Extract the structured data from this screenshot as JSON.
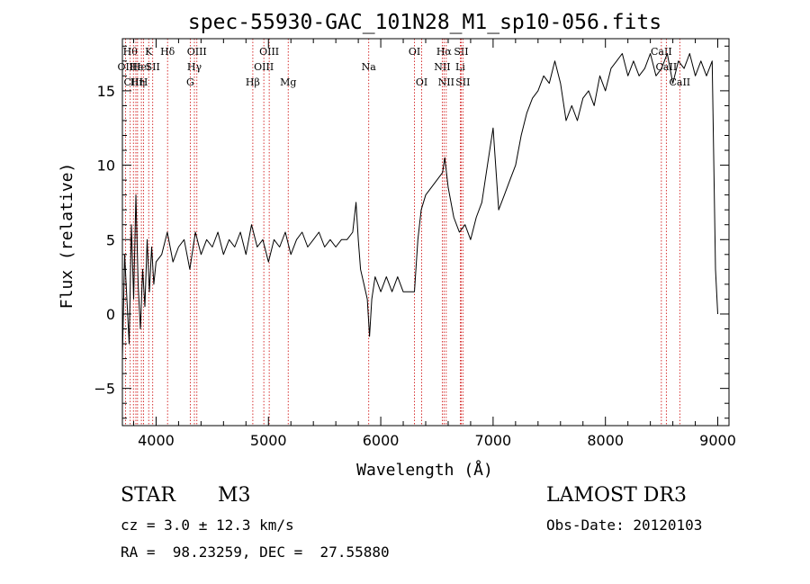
{
  "chart_data": {
    "type": "line",
    "title": "spec-55930-GAC_101N28_M1_sp10-056.fits",
    "xlabel": "Wavelength (Å)",
    "ylabel": "Flux (relative)",
    "xlim": [
      3700,
      9100
    ],
    "ylim": [
      -7.5,
      18.5
    ],
    "x_ticks": [
      4000,
      5000,
      6000,
      7000,
      8000,
      9000
    ],
    "y_ticks": [
      -5,
      0,
      5,
      10,
      15
    ],
    "line_color": "#000000",
    "marker_color": "#cc0000",
    "series": [
      {
        "x": [
          3700,
          3720,
          3740,
          3760,
          3780,
          3800,
          3820,
          3840,
          3860,
          3880,
          3900,
          3920,
          3940,
          3960,
          3980,
          4000,
          4050,
          4100,
          4150,
          4200,
          4250,
          4300,
          4350,
          4400,
          4450,
          4500,
          4550,
          4600,
          4650,
          4700,
          4750,
          4800,
          4850,
          4900,
          4950,
          5000,
          5050,
          5100,
          5150,
          5200,
          5250,
          5300,
          5350,
          5400,
          5450,
          5500,
          5550,
          5600,
          5650,
          5700,
          5750,
          5780,
          5800,
          5820,
          5850,
          5880,
          5900,
          5920,
          5950,
          6000,
          6050,
          6100,
          6150,
          6200,
          6250,
          6300,
          6330,
          6360,
          6400,
          6450,
          6500,
          6550,
          6570,
          6600,
          6650,
          6700,
          6750,
          6800,
          6850,
          6900,
          6950,
          7000,
          7050,
          7100,
          7150,
          7200,
          7250,
          7300,
          7350,
          7400,
          7450,
          7500,
          7550,
          7600,
          7650,
          7700,
          7750,
          7800,
          7850,
          7900,
          7950,
          8000,
          8050,
          8100,
          8150,
          8200,
          8250,
          8300,
          8350,
          8400,
          8450,
          8500,
          8550,
          8600,
          8650,
          8700,
          8750,
          8800,
          8850,
          8900,
          8950,
          8980,
          9000
        ],
        "y": [
          -3.0,
          4.0,
          1.0,
          -2.0,
          6.0,
          1.0,
          8.0,
          2.0,
          -1.0,
          3.0,
          0.5,
          5.0,
          1.5,
          4.5,
          2.0,
          3.5,
          4.0,
          5.5,
          3.5,
          4.5,
          5.0,
          3.0,
          5.5,
          4.0,
          5.0,
          4.5,
          5.5,
          4.0,
          5.0,
          4.5,
          5.5,
          4.0,
          6.0,
          4.5,
          5.0,
          3.5,
          5.0,
          4.5,
          5.5,
          4.0,
          5.0,
          5.5,
          4.5,
          5.0,
          5.5,
          4.5,
          5.0,
          4.5,
          5.0,
          5.0,
          5.5,
          7.5,
          5.0,
          3.0,
          2.0,
          1.0,
          -1.5,
          1.0,
          2.5,
          1.5,
          2.5,
          1.5,
          2.5,
          1.5,
          1.5,
          1.5,
          5.0,
          7.0,
          8.0,
          8.5,
          9.0,
          9.5,
          10.5,
          8.5,
          6.5,
          5.5,
          6.0,
          5.0,
          6.5,
          7.5,
          10.0,
          12.5,
          7.0,
          8.0,
          9.0,
          10.0,
          12.0,
          13.5,
          14.5,
          15.0,
          16.0,
          15.5,
          17.0,
          15.5,
          13.0,
          14.0,
          13.0,
          14.5,
          15.0,
          14.0,
          16.0,
          15.0,
          16.5,
          17.0,
          17.5,
          16.0,
          17.0,
          16.0,
          16.5,
          17.5,
          16.0,
          16.5,
          17.5,
          15.5,
          17.0,
          16.5,
          17.5,
          16.0,
          17.0,
          16.0,
          17.0,
          3.0,
          0.0
        ]
      }
    ],
    "lines": [
      {
        "x": 3727,
        "label": "OII",
        "row": 2
      },
      {
        "x": 3770,
        "label": "Hθ",
        "row": 1
      },
      {
        "x": 3798,
        "label": "CIII",
        "row": 3
      },
      {
        "x": 3820,
        "label": "Hε",
        "row": 2
      },
      {
        "x": 3835,
        "label": "Hη",
        "row": 3
      },
      {
        "x": 3869,
        "label": "HeI",
        "row": 2
      },
      {
        "x": 3889,
        "label": "H",
        "row": 3
      },
      {
        "x": 3934,
        "label": "K",
        "row": 1
      },
      {
        "x": 3970,
        "label": "SII",
        "row": 2
      },
      {
        "x": 4102,
        "label": "Hδ",
        "row": 1
      },
      {
        "x": 4304,
        "label": "G",
        "row": 3
      },
      {
        "x": 4341,
        "label": "Hγ",
        "row": 2
      },
      {
        "x": 4363,
        "label": "OIII",
        "row": 1
      },
      {
        "x": 4861,
        "label": "Hβ",
        "row": 3
      },
      {
        "x": 4959,
        "label": "OIII",
        "row": 2
      },
      {
        "x": 5007,
        "label": "OIII",
        "row": 1
      },
      {
        "x": 5176,
        "label": "Mg",
        "row": 3
      },
      {
        "x": 5893,
        "label": "Na",
        "row": 2
      },
      {
        "x": 6300,
        "label": "OI",
        "row": 1
      },
      {
        "x": 6364,
        "label": "OI",
        "row": 3
      },
      {
        "x": 6548,
        "label": "NII",
        "row": 2
      },
      {
        "x": 6563,
        "label": "Hα",
        "row": 1
      },
      {
        "x": 6583,
        "label": "NII",
        "row": 3
      },
      {
        "x": 6708,
        "label": "Li",
        "row": 2
      },
      {
        "x": 6716,
        "label": "SII",
        "row": 1
      },
      {
        "x": 6731,
        "label": "SII",
        "row": 3
      },
      {
        "x": 8498,
        "label": "CaII",
        "row": 1
      },
      {
        "x": 8542,
        "label": "CaII",
        "row": 2
      },
      {
        "x": 8662,
        "label": "CaII",
        "row": 3
      }
    ]
  },
  "info": {
    "object_class": "STAR",
    "subclass": "M3",
    "survey": "LAMOST DR3",
    "cz": "cz = 3.0 ± 12.3 km/s",
    "obs_date": "Obs-Date: 20120103",
    "coords": "RA =  98.23259, DEC =  27.55880"
  }
}
